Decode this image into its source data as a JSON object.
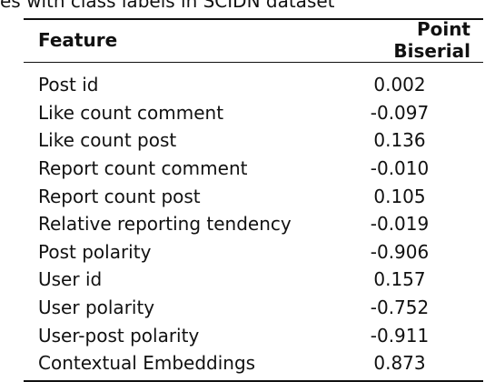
{
  "caption": "es with class labels in SCIDN dataset",
  "table": {
    "headers": [
      "Feature",
      "Point Biserial"
    ],
    "rows": [
      {
        "feature": "Post id",
        "value": "0.002"
      },
      {
        "feature": "Like count comment",
        "value": "-0.097"
      },
      {
        "feature": "Like count post",
        "value": "0.136"
      },
      {
        "feature": "Report count comment",
        "value": "-0.010"
      },
      {
        "feature": "Report count post",
        "value": "0.105"
      },
      {
        "feature": "Relative reporting tendency",
        "value": "-0.019"
      },
      {
        "feature": "Post polarity",
        "value": "-0.906"
      },
      {
        "feature": "User id",
        "value": "0.157"
      },
      {
        "feature": "User polarity",
        "value": "-0.752"
      },
      {
        "feature": "User-post polarity",
        "value": "-0.911"
      },
      {
        "feature": "Contextual Embeddings",
        "value": "0.873"
      }
    ]
  }
}
